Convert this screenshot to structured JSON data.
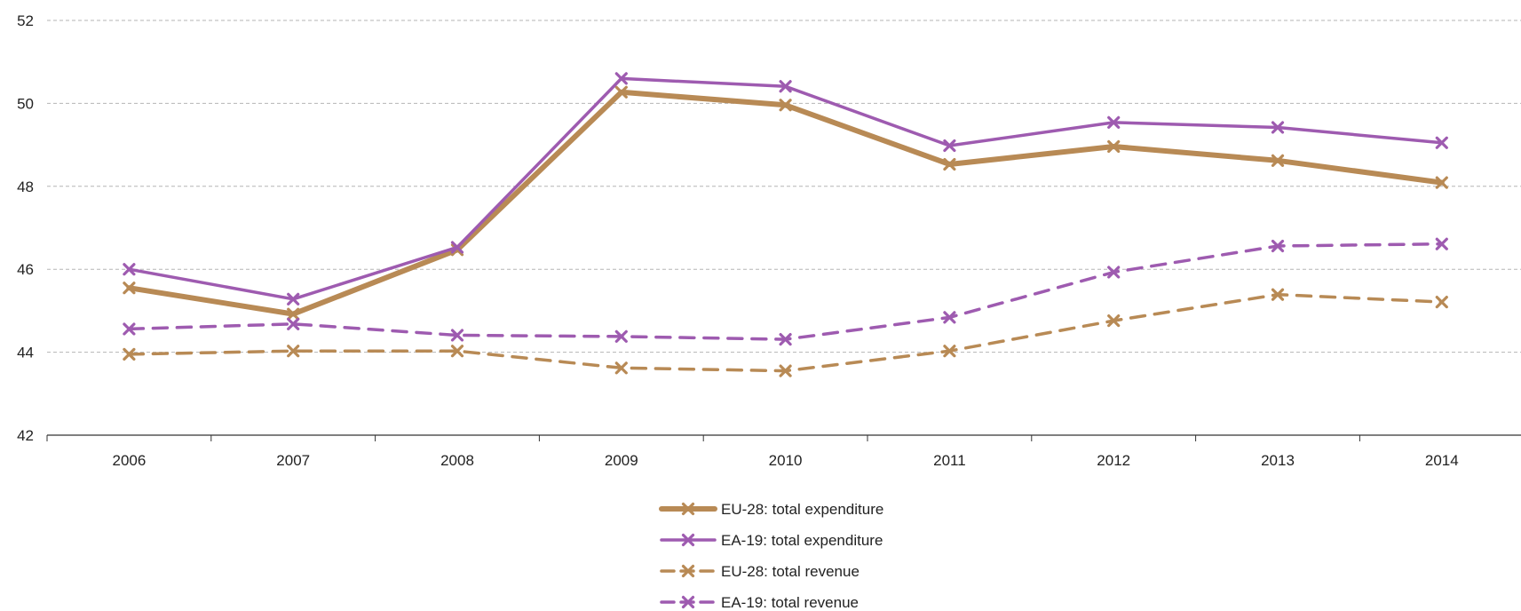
{
  "chart_data": {
    "type": "line",
    "title": "",
    "xlabel": "",
    "ylabel": "",
    "x": [
      "2006",
      "2007",
      "2008",
      "2009",
      "2010",
      "2011",
      "2012",
      "2013",
      "2014"
    ],
    "ylim": [
      42,
      52
    ],
    "yticks": [
      42,
      44,
      46,
      48,
      50,
      52
    ],
    "grid": "horizontal dashed",
    "legend_position": "bottom-center",
    "series": [
      {
        "name": "EU-28: total expenditure",
        "color": "#B88A55",
        "style": "solid",
        "marker": "x",
        "values": [
          45.55,
          44.92,
          46.47,
          50.27,
          49.96,
          48.53,
          48.96,
          48.62,
          48.09
        ]
      },
      {
        "name": "EA-19: total expenditure",
        "color": "#9E5BB0",
        "style": "solid",
        "marker": "x",
        "values": [
          46.0,
          45.28,
          46.53,
          50.6,
          50.41,
          48.98,
          49.54,
          49.42,
          49.05
        ]
      },
      {
        "name": "EU-28: total revenue",
        "color": "#B88A55",
        "style": "dashed",
        "marker": "x",
        "values": [
          43.95,
          44.03,
          44.03,
          43.62,
          43.55,
          44.03,
          44.76,
          45.39,
          45.21
        ]
      },
      {
        "name": "EA-19: total revenue",
        "color": "#9E5BB0",
        "style": "dashed",
        "marker": "x",
        "values": [
          44.56,
          44.68,
          44.41,
          44.38,
          44.31,
          44.84,
          45.93,
          46.56,
          46.61
        ]
      }
    ]
  }
}
